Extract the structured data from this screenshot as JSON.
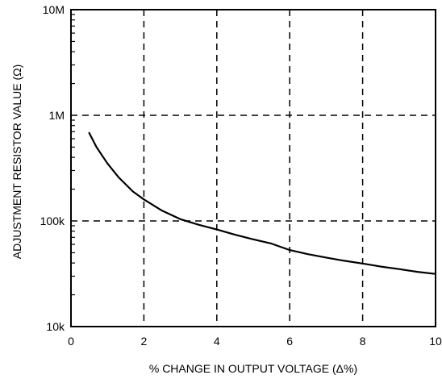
{
  "chart_data": {
    "type": "line",
    "title": "",
    "xlabel": "% CHANGE IN OUTPUT VOLTAGE (Δ%)",
    "ylabel": "ADJUSTMENT RESISTOR VALUE (Ω)",
    "xlim": [
      0,
      10
    ],
    "ylim": [
      10000,
      10000000
    ],
    "yscale": "log",
    "grid": true,
    "grid_style": "dashed",
    "x_ticks": [
      {
        "value": 0,
        "label": "0"
      },
      {
        "value": 2,
        "label": "2"
      },
      {
        "value": 4,
        "label": "4"
      },
      {
        "value": 6,
        "label": "6"
      },
      {
        "value": 8,
        "label": "8"
      },
      {
        "value": 10,
        "label": "10"
      }
    ],
    "y_ticks": [
      {
        "value": 10000,
        "label": "10k"
      },
      {
        "value": 100000,
        "label": "100k"
      },
      {
        "value": 1000000,
        "label": "1M"
      },
      {
        "value": 10000000,
        "label": "10M"
      }
    ],
    "series": [
      {
        "color": "#000000",
        "x": [
          0.5,
          0.7,
          1.0,
          1.3,
          1.7,
          2.0,
          2.5,
          3.0,
          3.5,
          4.0,
          4.5,
          5.0,
          5.5,
          6.0,
          6.5,
          7.0,
          7.5,
          8.0,
          8.5,
          9.0,
          9.5,
          10.0
        ],
        "y": [
          680000,
          500000,
          350000,
          260000,
          190000,
          160000,
          125000,
          104000,
          92000,
          83000,
          74000,
          67000,
          61000,
          53000,
          48500,
          45000,
          42000,
          39500,
          37000,
          35000,
          33000,
          31500
        ]
      }
    ]
  },
  "colors": {
    "line": "#000000",
    "grid": "#000000",
    "background": "#ffffff"
  }
}
